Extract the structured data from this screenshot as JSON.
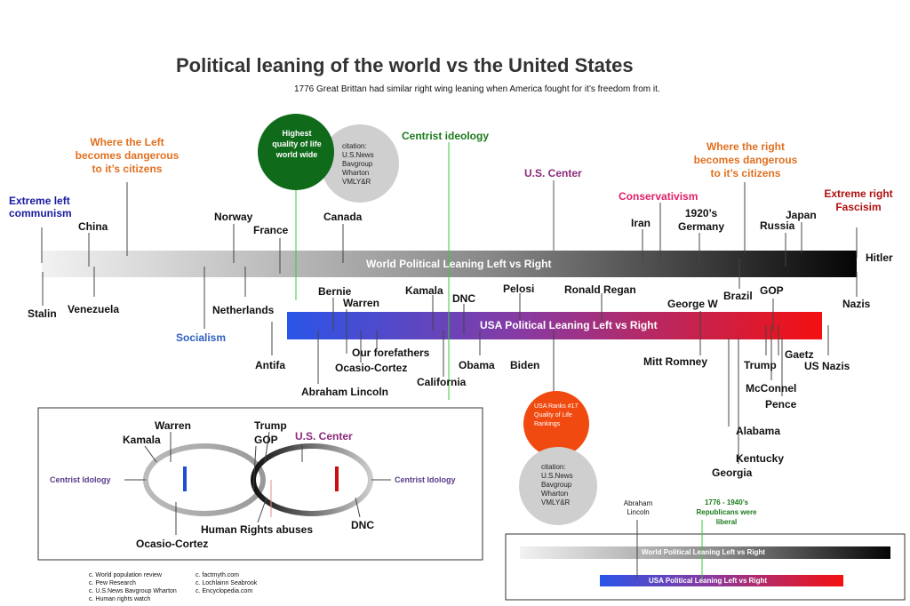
{
  "title": "Political leaning of the world vs the United States",
  "subtitle": "1776 Great Brittan had similar right wing leaning when America fought for it’s freedom from it.",
  "highest_quality": "Highest quality of life world wide",
  "citation1": "citation: U.S.News Bavgroup Wharton VMLY&R",
  "centrist_ideology": "Centrist ideology",
  "left_danger": "Where the Left becomes dangerous to it’s citizens",
  "right_danger": "Where the right becomes dangerous to it’s citizens",
  "extreme_left": "Extreme left communism",
  "extreme_right": "Extreme right Fascisim",
  "us_center": "U.S. Center",
  "conservatism": "Conservativism",
  "socialism": "Socialism",
  "world_bar": "World Political Leaning Left vs Right",
  "usa_bar": "USA Political Leaning Left vs Right",
  "world_labels": {
    "china": "China",
    "norway": "Norway",
    "france": "France",
    "canada": "Canada",
    "iran": "Iran",
    "germany1920": "1920’s Germany",
    "russia": "Russia",
    "japan": "Japan",
    "hitler": "Hitler",
    "stalin": "Stalin",
    "venezuela": "Venezuela",
    "netherlands": "Netherlands",
    "antifa": "Antifa",
    "nazis": "Nazis",
    "brazil": "Brazil"
  },
  "usa_labels": {
    "bernie": "Bernie",
    "warren": "Warren",
    "kamala": "Kamala",
    "dnc": "DNC",
    "pelosi": "Pelosi",
    "ronald_regan": "Ronald Regan",
    "george_w": "George W",
    "gop": "GOP",
    "our_forefathers": "Our forefathers",
    "ocasio_cortez": "Ocasio-Cortez",
    "abraham_lincoln": "Abraham Lincoln",
    "california": "California",
    "obama": "Obama",
    "biden": "Biden",
    "mitt_romney": "Mitt Romney",
    "trump": "Trump",
    "gaetz": "Gaetz",
    "us_nazis": "US Nazis",
    "mcconnel": "McConnel",
    "pence": "Pence",
    "alabama": "Alabama",
    "kentucky": "Kentucky",
    "georgia": "Georgia"
  },
  "usa_rank": "USA Ranks #17 Quality of Life Rankings",
  "citation2": "citation: U.S.News Bavgroup Wharton VMLY&R",
  "ring_box": {
    "warren": "Warren",
    "kamala": "Kamala",
    "trump": "Trump",
    "gop": "GOP",
    "us_center": "U.S. Center",
    "centrist_left": "Centrist Idology",
    "centrist_right": "Centrist Idology",
    "human_rights": "Human Rights abuses",
    "dnc": "DNC",
    "ocasio_cortez": "Ocasio-Cortez"
  },
  "sources_col1": [
    "c. World population review",
    "c. Pew Research",
    "c. U.S.News Bavgroup Wharton",
    "c. Human rights watch"
  ],
  "sources_col2": [
    "c. factmyth.com",
    "c. Lochlainn Seabrook",
    "c. Encyclopedia.com"
  ],
  "mini_box": {
    "abraham_lincoln": "Abraham Lincoln",
    "republicans_liberal": "1776 - 1940’s Republicans were liberal",
    "world_bar": "World Political Leaning Left vs Right",
    "usa_bar": "USA Political Leaning Left vs Right"
  },
  "colors": {
    "green_circle": "#0f6a1a",
    "grey_circle": "#cfcfcf",
    "orange_circle": "#f04a10",
    "usa_left": "#2a50e0",
    "usa_right": "#f01010",
    "world_left": "#eeeeee",
    "world_right": "#111111"
  }
}
